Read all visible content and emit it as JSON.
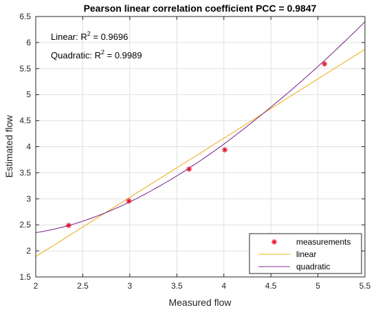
{
  "chart_data": {
    "type": "scatter",
    "title": "Pearson linear correlation coefficient PCC = 0.9847",
    "xlabel": "Measured flow",
    "ylabel": "Estimated flow",
    "xlim": [
      2,
      5.5
    ],
    "ylim": [
      1.5,
      6.5
    ],
    "xticks": [
      "2",
      "2.5",
      "3",
      "3.5",
      "4",
      "4.5",
      "5",
      "5.5"
    ],
    "yticks": [
      "1.5",
      "2",
      "2.5",
      "3",
      "3.5",
      "4",
      "4.5",
      "5",
      "5.5",
      "6",
      "6.5"
    ],
    "grid": true,
    "legend_position": "bottom-right",
    "annotations": [
      {
        "prefix": "Linear: R",
        "sup": "2",
        "suffix": " = 0.9696"
      },
      {
        "prefix": "Quadratic: R",
        "sup": "2",
        "suffix": " = 0.9989"
      }
    ],
    "series": [
      {
        "name": "measurements",
        "kind": "markers",
        "marker": "asterisk",
        "color": "#e8112d",
        "x": [
          2.35,
          2.99,
          3.63,
          4.01,
          5.07
        ],
        "y": [
          2.49,
          2.96,
          3.57,
          3.94,
          5.59
        ]
      },
      {
        "name": "linear",
        "kind": "line",
        "color": "#edb120",
        "x": [
          2,
          5.5
        ],
        "y": [
          1.89,
          5.87
        ]
      },
      {
        "name": "quadratic",
        "kind": "curve",
        "color": "#7e2f8e",
        "x": [
          2,
          2.5,
          3,
          3.5,
          4,
          4.5,
          5,
          5.5
        ],
        "y": [
          2.35,
          2.57,
          2.94,
          3.44,
          4.05,
          4.76,
          5.54,
          6.4
        ]
      }
    ]
  }
}
